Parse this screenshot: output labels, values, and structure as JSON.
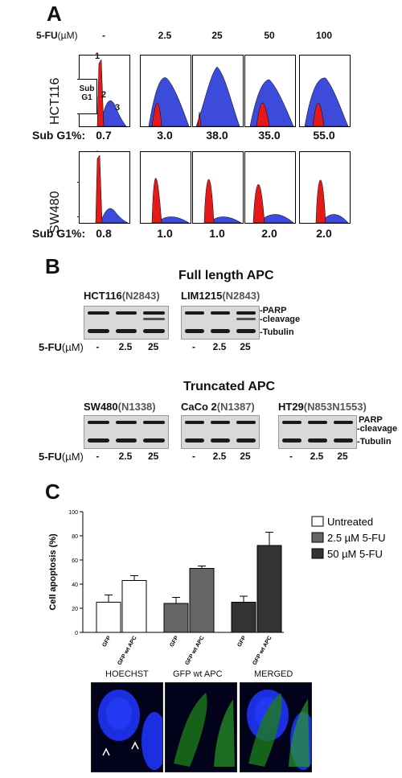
{
  "panel_a": {
    "letter": "A",
    "dose_header": "5-FU",
    "dose_unit": "(µM)",
    "doses": [
      "-",
      "2.5",
      "25",
      "50",
      "100"
    ],
    "hct116": {
      "cell_line": "HCT116",
      "subg1_label": "Sub G1%:",
      "subg1_values": [
        "0.7",
        "3.0",
        "38.0",
        "35.0",
        "55.0"
      ]
    },
    "sw480": {
      "cell_line": "SW480",
      "subg1_label": "Sub G1%:",
      "subg1_values": [
        "0.8",
        "1.0",
        "1.0",
        "2.0",
        "2.0"
      ]
    },
    "peak_labels": [
      "1",
      "2",
      "3"
    ],
    "sub_g1_box": "Sub\nG1"
  },
  "panel_b": {
    "letter": "B",
    "full_title": "Full length APC",
    "truncated_title": "Truncated APC",
    "blots": [
      {
        "name": "HCT116",
        "variant": "(N2843)"
      },
      {
        "name": "LIM1215",
        "variant": "(N2843)"
      },
      {
        "name": "SW480",
        "variant": "(N1338)"
      },
      {
        "name": "CaCo 2",
        "variant": "(N1387)"
      },
      {
        "name": "HT29",
        "variant": "(N853N1553)"
      }
    ],
    "side_labels": {
      "parp": "-PARP",
      "cleavage": "-cleavage",
      "tubulin": "-Tubulin",
      "parp2": "PARP",
      "cleavage2": "-cleavage"
    },
    "dose_label": "5-FU",
    "dose_unit": "(µM)",
    "lanes": [
      "-",
      "2.5",
      "25"
    ]
  },
  "panel_c": {
    "letter": "C",
    "ylabel": "Cell apoptosis (%)",
    "x_tick_labels": [
      "GFP",
      "GFP wt APC",
      "GFP",
      "GFP wt APC",
      "GFP",
      "GFP wt APC"
    ],
    "micro_labels": [
      "HOECHST",
      "GFP  wt APC",
      "MERGED"
    ]
  },
  "chart_data": {
    "type": "bar",
    "ylabel": "Cell apoptosis (%)",
    "ylim": [
      0,
      100
    ],
    "yticks": [
      0,
      20,
      40,
      60,
      80,
      100
    ],
    "categories": [
      "GFP",
      "GFP wt APC"
    ],
    "series": [
      {
        "name": "Untreated",
        "values": [
          25,
          43
        ],
        "errors": [
          6,
          4
        ],
        "color": "#ffffff"
      },
      {
        "name": "2.5 µM 5-FU",
        "values": [
          24,
          53
        ],
        "errors": [
          5,
          2
        ],
        "color": "#666666"
      },
      {
        "name": "50 µM 5-FU",
        "values": [
          25,
          72
        ],
        "errors": [
          5,
          11
        ],
        "color": "#333333"
      }
    ],
    "legend_position": "top-right",
    "grid": false
  }
}
